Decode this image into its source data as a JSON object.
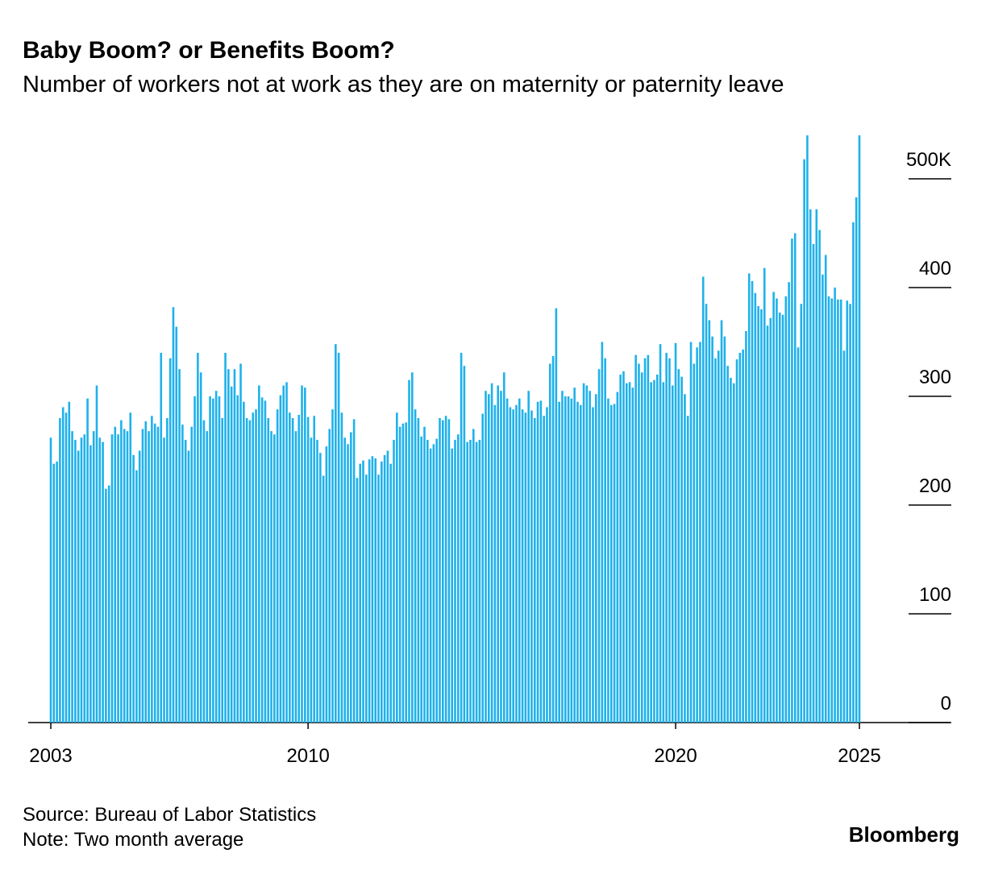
{
  "chart_data": {
    "type": "bar",
    "title": "Baby Boom? or Benefits Boom?",
    "subtitle": "Number of workers not at work as they are on maternity or paternity leave",
    "source": "Source: Bureau of Labor Statistics",
    "note": "Note: Two month average",
    "brand": "Bloomberg",
    "color": "#1fb1ea",
    "ylim": [
      0,
      545
    ],
    "yticks": [
      0,
      100,
      200,
      300,
      400,
      {
        "value": 500,
        "label": "500K"
      }
    ],
    "categories": [
      "2003",
      null,
      null,
      null,
      null,
      null,
      null,
      null,
      null,
      null,
      null,
      null,
      null,
      null,
      null,
      null,
      null,
      null,
      null,
      null,
      null,
      null,
      null,
      null,
      null,
      null,
      null,
      null,
      null,
      null,
      null,
      null,
      null,
      null,
      null,
      null,
      null,
      null,
      null,
      null,
      null,
      null,
      null,
      null,
      null,
      null,
      null,
      null,
      null,
      null,
      null,
      null,
      null,
      null,
      null,
      null,
      null,
      null,
      null,
      null,
      null,
      null,
      null,
      null,
      null,
      null,
      null,
      null,
      null,
      null,
      null,
      null,
      null,
      null,
      null,
      null,
      null,
      null,
      null,
      null,
      null,
      null,
      null,
      null,
      "2010",
      null,
      null,
      null,
      null,
      null,
      null,
      null,
      null,
      null,
      null,
      null,
      null,
      null,
      null,
      null,
      null,
      null,
      null,
      null,
      null,
      null,
      null,
      null,
      null,
      null,
      null,
      null,
      null,
      null,
      null,
      null,
      null,
      null,
      null,
      null,
      null,
      null,
      null,
      null,
      null,
      null,
      null,
      null,
      null,
      null,
      null,
      null,
      null,
      null,
      null,
      null,
      null,
      null,
      null,
      null,
      null,
      null,
      null,
      null,
      null,
      null,
      null,
      null,
      null,
      null,
      null,
      null,
      null,
      null,
      null,
      null,
      null,
      null,
      null,
      null,
      null,
      null,
      null,
      null,
      null,
      null,
      null,
      null,
      null,
      null,
      null,
      null,
      null,
      null,
      null,
      null,
      null,
      null,
      null,
      null,
      null,
      null,
      null,
      null,
      null,
      null,
      null,
      null,
      null,
      null,
      null,
      null,
      null,
      null,
      null,
      null,
      null,
      null,
      null,
      null,
      null,
      null,
      null,
      null,
      "2020",
      null,
      null,
      null,
      null,
      null,
      null,
      null,
      null,
      null,
      null,
      null,
      null,
      null,
      null,
      null,
      null,
      null,
      null,
      null,
      null,
      null,
      null,
      null,
      null,
      null,
      null,
      null,
      null,
      null,
      null,
      null,
      null,
      null,
      null,
      null,
      null,
      null,
      null,
      null,
      null,
      null,
      null,
      null,
      null,
      null,
      null,
      null,
      null,
      null,
      null,
      null,
      null,
      null,
      null,
      null,
      null,
      null,
      null,
      null,
      "2025"
    ],
    "values": [
      262,
      238,
      240,
      280,
      290,
      285,
      295,
      268,
      260,
      250,
      262,
      265,
      298,
      255,
      268,
      310,
      262,
      258,
      215,
      218,
      265,
      272,
      265,
      278,
      270,
      268,
      285,
      246,
      232,
      250,
      270,
      277,
      268,
      282,
      275,
      272,
      340,
      262,
      280,
      335,
      382,
      364,
      325,
      274,
      260,
      250,
      272,
      300,
      340,
      322,
      278,
      268,
      300,
      298,
      305,
      300,
      280,
      340,
      325,
      309,
      325,
      301,
      330,
      295,
      280,
      278,
      285,
      288,
      310,
      299,
      296,
      280,
      268,
      265,
      288,
      301,
      310,
      313,
      285,
      280,
      268,
      283,
      310,
      308,
      281,
      262,
      282,
      260,
      248,
      227,
      254,
      270,
      288,
      348,
      340,
      285,
      262,
      256,
      267,
      279,
      225,
      238,
      241,
      228,
      242,
      245,
      243,
      228,
      240,
      246,
      250,
      238,
      260,
      285,
      272,
      275,
      276,
      315,
      322,
      288,
      280,
      263,
      272,
      260,
      252,
      256,
      261,
      280,
      278,
      282,
      279,
      252,
      260,
      265,
      340,
      328,
      258,
      260,
      270,
      258,
      260,
      284,
      305,
      302,
      312,
      292,
      310,
      305,
      322,
      298,
      290,
      288,
      292,
      298,
      288,
      285,
      305,
      287,
      280,
      295,
      296,
      282,
      290,
      330,
      337,
      381,
      295,
      305,
      300,
      300,
      298,
      308,
      295,
      292,
      312,
      310,
      305,
      290,
      302,
      325,
      350,
      335,
      298,
      292,
      293,
      304,
      320,
      323,
      312,
      313,
      308,
      338,
      330,
      322,
      335,
      338,
      313,
      315,
      320,
      348,
      313,
      340,
      335,
      310,
      349,
      325,
      318,
      302,
      282,
      350,
      330,
      345,
      350,
      410,
      385,
      370,
      355,
      335,
      342,
      370,
      355,
      328,
      317,
      312,
      334,
      340,
      343,
      360,
      413,
      406,
      395,
      383,
      380,
      418,
      365,
      372,
      396,
      390,
      377,
      375,
      392,
      405,
      445,
      450,
      345,
      385,
      518,
      540,
      472,
      440,
      472,
      453,
      412,
      430,
      392,
      390,
      400,
      389,
      389,
      342,
      388,
      385,
      460,
      483,
      540
    ]
  }
}
